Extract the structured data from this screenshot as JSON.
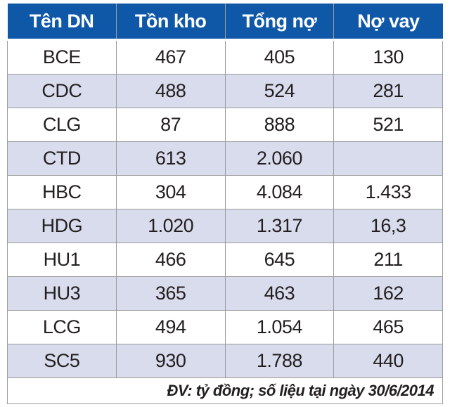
{
  "chart_data": {
    "type": "table",
    "columns": [
      "Tên DN",
      "Tồn kho",
      "Tổng nợ",
      "Nợ vay"
    ],
    "rows": [
      [
        "BCE",
        467,
        405,
        130
      ],
      [
        "CDC",
        488,
        524,
        281
      ],
      [
        "CLG",
        87,
        888,
        521
      ],
      [
        "CTD",
        613,
        2060,
        null
      ],
      [
        "HBC",
        304,
        4084,
        1433
      ],
      [
        "HDG",
        1020,
        1317,
        16.3
      ],
      [
        "HU1",
        466,
        645,
        211
      ],
      [
        "HU3",
        365,
        463,
        162
      ],
      [
        "LCG",
        494,
        1054,
        465
      ],
      [
        "SC5",
        930,
        1788,
        440
      ]
    ],
    "note": "ĐV: tỷ đồng; số liệu tại ngày 30/6/2014",
    "unit": "tỷ đồng",
    "layout_hints": "blue header row, alternating white/lavender body rows, full-width italic footnote row"
  },
  "table": {
    "headers": [
      "Tên DN",
      "Tồn kho",
      "Tổng nợ",
      "Nợ vay"
    ],
    "rows": [
      {
        "name": "BCE",
        "ton_kho": "467",
        "tong_no": "405",
        "no_vay": "130"
      },
      {
        "name": "CDC",
        "ton_kho": "488",
        "tong_no": "524",
        "no_vay": "281"
      },
      {
        "name": "CLG",
        "ton_kho": "87",
        "tong_no": "888",
        "no_vay": "521"
      },
      {
        "name": "CTD",
        "ton_kho": "613",
        "tong_no": "2.060",
        "no_vay": ""
      },
      {
        "name": "HBC",
        "ton_kho": "304",
        "tong_no": "4.084",
        "no_vay": "1.433"
      },
      {
        "name": "HDG",
        "ton_kho": "1.020",
        "tong_no": "1.317",
        "no_vay": "16,3"
      },
      {
        "name": "HU1",
        "ton_kho": "466",
        "tong_no": "645",
        "no_vay": "211"
      },
      {
        "name": "HU3",
        "ton_kho": "365",
        "tong_no": "463",
        "no_vay": "162"
      },
      {
        "name": "LCG",
        "ton_kho": "494",
        "tong_no": "1.054",
        "no_vay": "465"
      },
      {
        "name": "SC5",
        "ton_kho": "930",
        "tong_no": "1.788",
        "no_vay": "440"
      }
    ],
    "footer_note": "ĐV: tỷ đồng; số liệu tại ngày 30/6/2014"
  },
  "colors": {
    "header_bg": "#0f58a8",
    "header_text": "#ffffff",
    "alt_row_bg": "#d9dcec",
    "border": "#9b9b9b",
    "body_text": "#231f20"
  }
}
